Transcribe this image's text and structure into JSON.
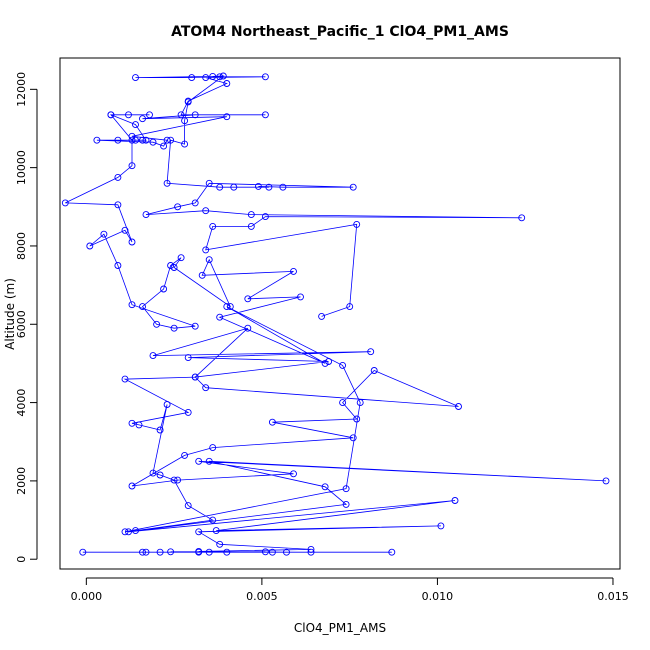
{
  "chart_data": {
    "type": "line",
    "title": "ATOM4 Northeast_Pacific_1 ClO4_PM1_AMS",
    "xlabel": "ClO4_PM1_AMS",
    "ylabel": "Altitude (m)",
    "xlim": [
      -0.00075,
      0.0152
    ],
    "ylim": [
      -250,
      12800
    ],
    "x_ticks": [
      "0.000",
      "0.005",
      "0.010",
      "0.015"
    ],
    "x_tick_values": [
      0.0,
      0.005,
      0.01,
      0.015
    ],
    "y_ticks": [
      "0",
      "2000",
      "4000",
      "6000",
      "8000",
      "10000",
      "12000"
    ],
    "y_tick_values": [
      0,
      2000,
      4000,
      6000,
      8000,
      10000,
      12000
    ],
    "marker": "open-circle",
    "series_color": "#0000ff",
    "grid": false,
    "series": [
      {
        "points": [
          [
            -0.0001,
            180
          ],
          [
            0.0087,
            180
          ],
          [
            0.0021,
            180
          ],
          [
            0.0064,
            180
          ],
          [
            0.0035,
            180
          ],
          [
            0.0053,
            180
          ],
          [
            0.0017,
            180
          ],
          [
            0.0051,
            190
          ],
          [
            0.0024,
            190
          ],
          [
            0.0032,
            180
          ],
          [
            0.004,
            180
          ],
          [
            0.0016,
            180
          ],
          [
            0.0057,
            180
          ],
          [
            0.0032,
            200
          ],
          [
            0.0064,
            250
          ],
          [
            0.0038,
            380
          ],
          [
            0.0032,
            700
          ],
          [
            0.0101,
            850
          ],
          [
            0.0037,
            730
          ],
          [
            0.0105,
            1500
          ],
          [
            0.0012,
            700
          ],
          [
            0.0074,
            1400
          ],
          [
            0.0068,
            1850
          ],
          [
            0.0035,
            2500
          ],
          [
            0.0148,
            2000
          ],
          [
            0.0032,
            2500
          ],
          [
            0.0059,
            2180
          ],
          [
            0.0026,
            2020
          ],
          [
            0.0013,
            1870
          ],
          [
            0.0028,
            2650
          ],
          [
            0.0036,
            2850
          ],
          [
            0.0076,
            3100
          ],
          [
            0.0053,
            3500
          ],
          [
            0.0077,
            3580
          ],
          [
            0.0073,
            4000
          ],
          [
            0.0082,
            4820
          ],
          [
            0.0106,
            3900
          ],
          [
            0.0034,
            4380
          ],
          [
            0.0031,
            4650
          ],
          [
            0.0069,
            5050
          ],
          [
            0.0029,
            5150
          ],
          [
            0.0081,
            5300
          ],
          [
            0.0019,
            5200
          ],
          [
            0.0046,
            5900
          ],
          [
            0.0031,
            4650
          ],
          [
            0.0011,
            4600
          ],
          [
            0.0029,
            3750
          ],
          [
            0.0013,
            3470
          ],
          [
            0.0015,
            3430
          ],
          [
            0.0021,
            3300
          ],
          [
            0.0023,
            3950
          ],
          [
            0.0019,
            2200
          ],
          [
            0.0021,
            2150
          ],
          [
            0.0025,
            2020
          ],
          [
            0.0029,
            1370
          ],
          [
            0.0036,
            1000
          ],
          [
            0.0014,
            730
          ],
          [
            0.0011,
            700
          ],
          [
            0.0074,
            1800
          ],
          [
            0.0078,
            4000
          ],
          [
            0.0073,
            4950
          ],
          [
            0.004,
            6450
          ],
          [
            0.0068,
            5000
          ],
          [
            0.0038,
            6180
          ],
          [
            0.0061,
            6700
          ],
          [
            0.0046,
            6650
          ],
          [
            0.0059,
            7350
          ],
          [
            0.0033,
            7250
          ],
          [
            0.0035,
            7650
          ],
          [
            0.0041,
            6450
          ],
          [
            0.0025,
            7450
          ],
          [
            0.0027,
            7700
          ],
          [
            0.0024,
            7500
          ],
          [
            0.0022,
            6900
          ],
          [
            0.0016,
            6450
          ],
          [
            0.002,
            6000
          ],
          [
            0.0025,
            5900
          ],
          [
            0.0031,
            5950
          ],
          [
            0.0013,
            6500
          ],
          [
            0.0009,
            7500
          ],
          [
            0.0005,
            8300
          ],
          [
            0.0001,
            8000
          ],
          [
            0.0011,
            8400
          ],
          [
            0.0013,
            8100
          ],
          [
            0.0009,
            9050
          ],
          [
            -0.0006,
            9100
          ],
          [
            0.0009,
            9750
          ],
          [
            0.0013,
            10050
          ],
          [
            0.0013,
            10700
          ],
          [
            0.0007,
            11350
          ],
          [
            0.0018,
            11350
          ],
          [
            0.0012,
            11350
          ],
          [
            0.0007,
            11350
          ],
          [
            0.0014,
            11100
          ],
          [
            0.0017,
            10700
          ],
          [
            0.0014,
            10700
          ],
          [
            0.0016,
            10700
          ],
          [
            0.0009,
            10700
          ],
          [
            0.0003,
            10700
          ],
          [
            0.0019,
            10650
          ],
          [
            0.0022,
            10550
          ],
          [
            0.0023,
            10700
          ],
          [
            0.0013,
            10800
          ],
          [
            0.004,
            11300
          ],
          [
            0.0016,
            11250
          ],
          [
            0.0031,
            11350
          ],
          [
            0.0051,
            11350
          ],
          [
            0.0027,
            11350
          ],
          [
            0.0029,
            11700
          ],
          [
            0.004,
            12150
          ],
          [
            0.0034,
            12300
          ],
          [
            0.0038,
            12320
          ],
          [
            0.0051,
            12320
          ],
          [
            0.003,
            12300
          ],
          [
            0.0014,
            12300
          ],
          [
            0.0036,
            12330
          ],
          [
            0.0039,
            12340
          ],
          [
            0.0029,
            11680
          ],
          [
            0.0028,
            11200
          ],
          [
            0.0028,
            10600
          ],
          [
            0.0024,
            10700
          ],
          [
            0.0023,
            9600
          ],
          [
            0.0038,
            9500
          ],
          [
            0.0042,
            9500
          ],
          [
            0.0052,
            9500
          ],
          [
            0.0049,
            9520
          ],
          [
            0.0056,
            9500
          ],
          [
            0.0076,
            9500
          ],
          [
            0.0035,
            9600
          ],
          [
            0.0031,
            9100
          ],
          [
            0.0026,
            9000
          ],
          [
            0.0017,
            8800
          ],
          [
            0.0034,
            8900
          ],
          [
            0.0047,
            8800
          ],
          [
            0.0124,
            8720
          ],
          [
            0.0051,
            8750
          ],
          [
            0.0047,
            8500
          ],
          [
            0.0036,
            8500
          ],
          [
            0.0034,
            7900
          ],
          [
            0.0077,
            8550
          ],
          [
            0.0075,
            6450
          ],
          [
            0.0067,
            6200
          ]
        ]
      }
    ]
  }
}
